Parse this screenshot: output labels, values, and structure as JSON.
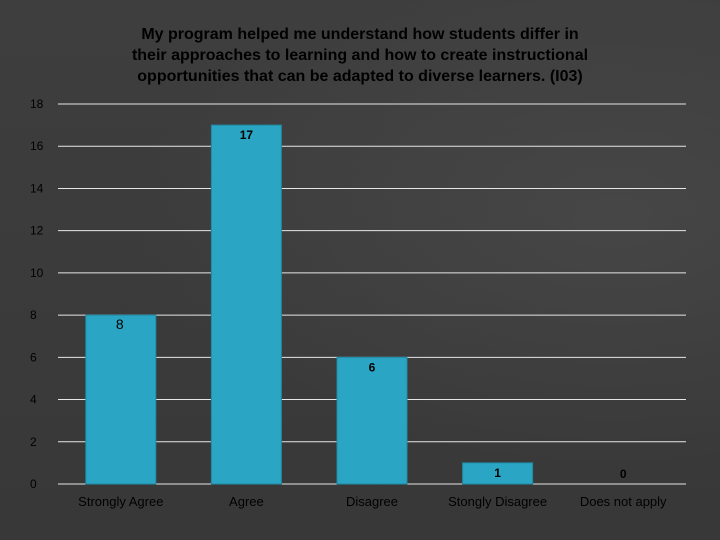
{
  "chart_data": {
    "type": "bar",
    "title": "My program helped me understand how students differ in their approaches to learning and how to create instructional opportunities that can be adapted to diverse learners. (I03)",
    "title_lines": [
      "My program helped me understand how students differ in",
      "their approaches to learning and how to create instructional",
      "opportunities that can be adapted to diverse learners. (I03)"
    ],
    "categories": [
      "Strongly Agree",
      "Agree",
      "Disagree",
      "Stongly Disagree",
      "Does not apply"
    ],
    "values": [
      8,
      17,
      6,
      1,
      0
    ],
    "data_labels": [
      "8",
      "17",
      "6",
      "1",
      "0"
    ],
    "ylim": [
      0,
      18
    ],
    "yticks": [
      0,
      2,
      4,
      6,
      8,
      10,
      12,
      14,
      16,
      18
    ],
    "xlabel": "",
    "ylabel": "",
    "grid": true,
    "legend": "none",
    "colors": {
      "bar": "#2aa5c3",
      "bar_border": "#1f8aa5",
      "grid": "#e6e6e6",
      "tick_text": "#000000",
      "title": "#000000"
    }
  }
}
